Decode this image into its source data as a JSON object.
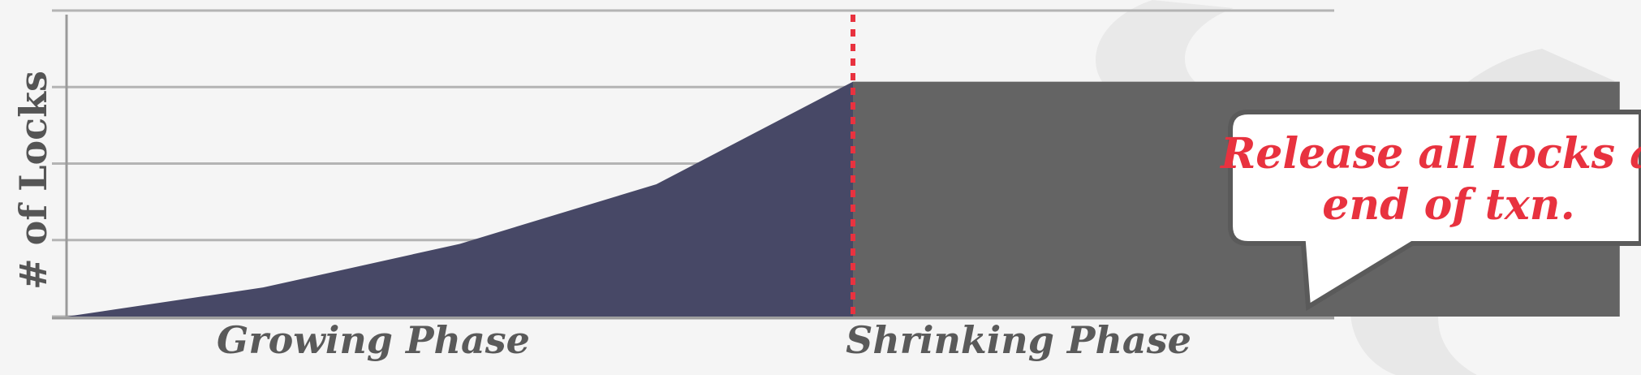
{
  "chart_data": {
    "type": "area",
    "ylabel": "# of Locks",
    "x_labels": [
      "Growing Phase",
      "Shrinking Phase"
    ],
    "ylim": [
      0,
      4
    ],
    "yticks": [
      0,
      1,
      2,
      3,
      4
    ],
    "grid": true,
    "growing_phase": {
      "x": [
        0,
        1,
        2,
        3,
        4
      ],
      "y": [
        0,
        0.38,
        0.95,
        1.73,
        3.07
      ]
    },
    "shrinking_phase": {
      "x_start": 4,
      "x_end": 7.9,
      "y": 3.07
    },
    "phase_boundary_x": 4,
    "xlim": [
      0,
      8
    ],
    "colors": {
      "growing": "#474866",
      "shrinking": "#646464",
      "divider": "#e8323f",
      "grid": "#b4b4b4"
    }
  },
  "callout": {
    "line1": "Release all locks at",
    "line2": "end of txn."
  }
}
